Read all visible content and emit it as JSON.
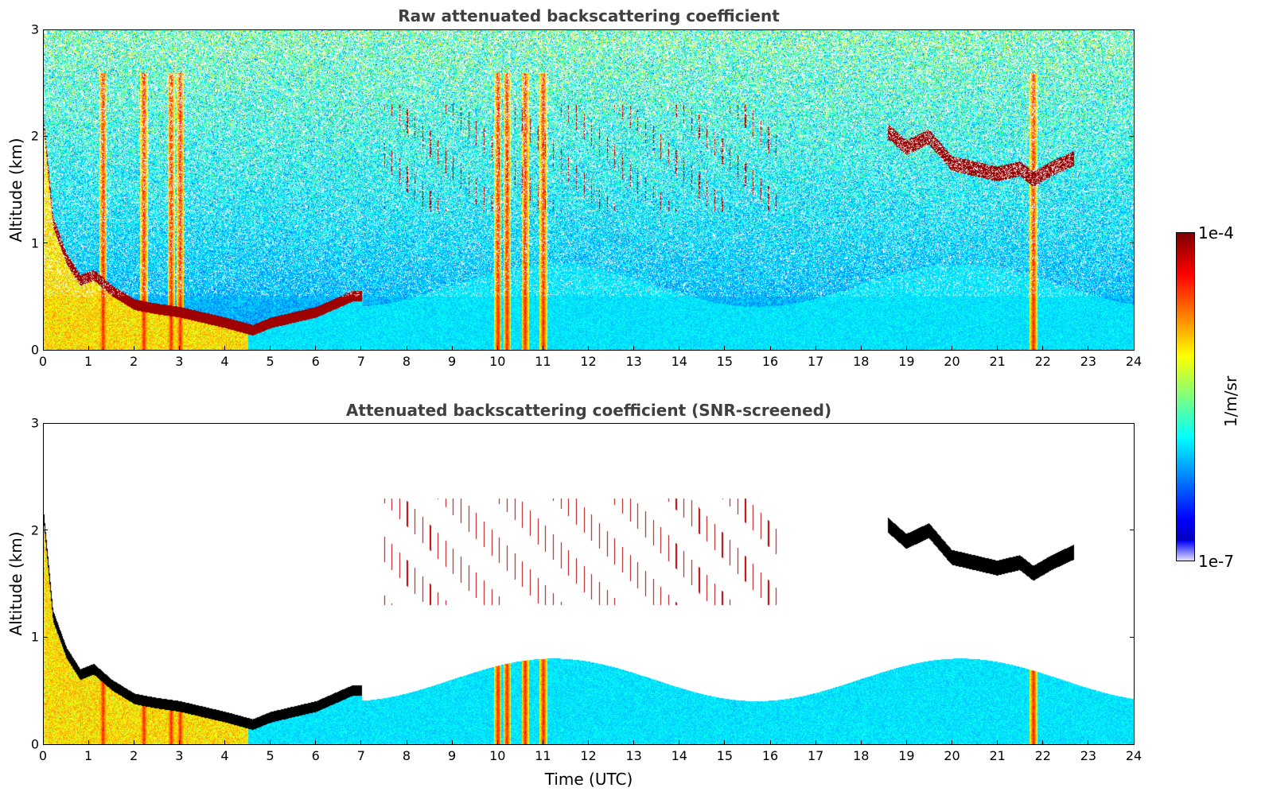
{
  "chart_data": [
    {
      "type": "heatmap",
      "title": "Raw attenuated backscattering coefficient",
      "xlabel": "",
      "ylabel": "Altitude (km)",
      "xlim": [
        0,
        24
      ],
      "ylim": [
        0,
        3
      ],
      "xticks": [
        "0",
        "1",
        "2",
        "3",
        "4",
        "5",
        "6",
        "7",
        "8",
        "9",
        "10",
        "11",
        "12",
        "13",
        "14",
        "15",
        "16",
        "17",
        "18",
        "19",
        "20",
        "21",
        "22",
        "23",
        "24"
      ],
      "yticks": [
        "0",
        "1",
        "2",
        "3"
      ],
      "features": {
        "cloud_layers": [
          {
            "description": "boundary layer top",
            "points": [
              [
                0,
                2.1
              ],
              [
                0.2,
                1.2
              ],
              [
                0.5,
                0.85
              ],
              [
                0.8,
                0.65
              ],
              [
                1.1,
                0.7
              ],
              [
                1.5,
                0.55
              ],
              [
                2,
                0.42
              ],
              [
                2.5,
                0.38
              ],
              [
                3,
                0.35
              ],
              [
                3.5,
                0.3
              ],
              [
                4,
                0.25
              ],
              [
                4.6,
                0.18
              ],
              [
                5,
                0.25
              ],
              [
                6,
                0.35
              ],
              [
                6.8,
                0.5
              ]
            ]
          },
          {
            "description": "upper cloud layer",
            "points": [
              [
                18.6,
                2.05
              ],
              [
                19,
                1.9
              ],
              [
                19.5,
                2.0
              ],
              [
                20,
                1.75
              ],
              [
                20.5,
                1.7
              ],
              [
                21,
                1.65
              ],
              [
                21.5,
                1.7
              ],
              [
                21.8,
                1.6
              ],
              [
                22.2,
                1.7
              ],
              [
                22.7,
                1.8
              ]
            ]
          }
        ],
        "vertical_plumes_utc": [
          1.3,
          2.2,
          2.8,
          3.0,
          10.0,
          10.2,
          10.6,
          11.0,
          21.8
        ]
      }
    },
    {
      "type": "heatmap",
      "title": "Attenuated backscattering coefficient (SNR-screened)",
      "xlabel": "Time (UTC)",
      "ylabel": "Altitude (km)",
      "xlim": [
        0,
        24
      ],
      "ylim": [
        0,
        3
      ],
      "xticks": [
        "0",
        "1",
        "2",
        "3",
        "4",
        "5",
        "6",
        "7",
        "8",
        "9",
        "10",
        "11",
        "12",
        "13",
        "14",
        "15",
        "16",
        "17",
        "18",
        "19",
        "20",
        "21",
        "22",
        "23",
        "24"
      ],
      "yticks": [
        "0",
        "1",
        "2",
        "3"
      ]
    }
  ],
  "colorbar": {
    "max_label": "1e-4",
    "min_label": "1e-7",
    "unit": "1/m/sr",
    "colormap": "jet",
    "scale": "log"
  }
}
